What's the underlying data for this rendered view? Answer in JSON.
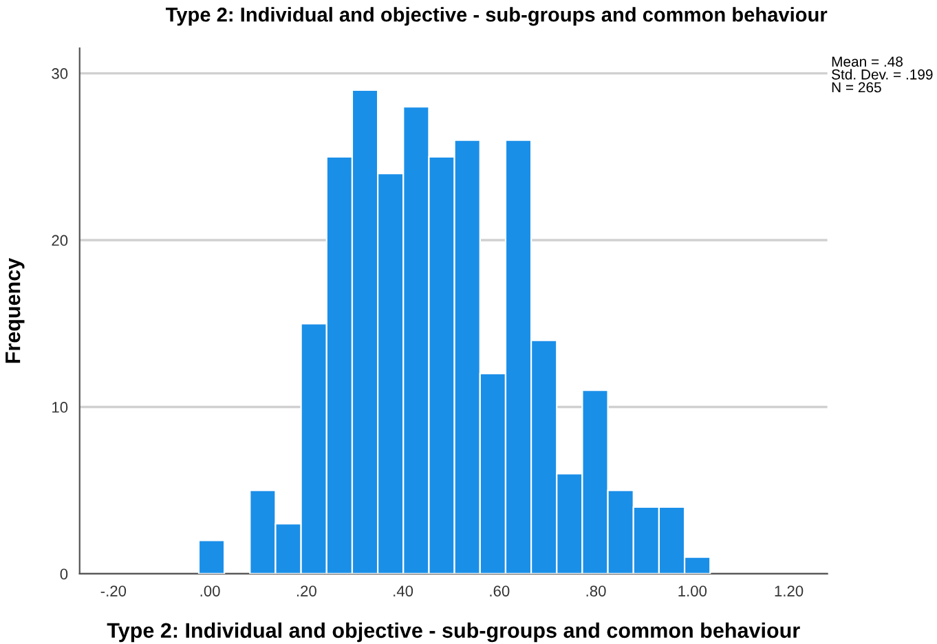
{
  "chart_data": {
    "type": "histogram",
    "title": "Type 2: Individual and objective - sub-groups and common behaviour",
    "xlabel": "Type 2: Individual and objective - sub-groups and common behaviour",
    "ylabel": "Frequency",
    "bins": [
      -0.023,
      0.03,
      0.083,
      0.136,
      0.189,
      0.242,
      0.295,
      0.348,
      0.401,
      0.454,
      0.507,
      0.56,
      0.613,
      0.666,
      0.719,
      0.772,
      0.825,
      0.878,
      0.931,
      0.984,
      1.037
    ],
    "values": [
      2,
      0,
      5,
      3,
      15,
      25,
      29,
      24,
      28,
      25,
      26,
      12,
      26,
      14,
      6,
      11,
      5,
      4,
      4,
      1
    ],
    "color": "#1a8fe8",
    "xlim": [
      -0.27,
      1.28
    ],
    "ylim": [
      0,
      31.5
    ],
    "xticks": [
      {
        "value": -0.2,
        "label": "-.20"
      },
      {
        "value": 0,
        "label": ".00"
      },
      {
        "value": 0.2,
        "label": ".20"
      },
      {
        "value": 0.4,
        "label": ".40"
      },
      {
        "value": 0.6,
        "label": ".60"
      },
      {
        "value": 0.8,
        "label": ".80"
      },
      {
        "value": 1.0,
        "label": "1.00"
      },
      {
        "value": 1.2,
        "label": "1.20"
      }
    ],
    "yticks": [
      0,
      10,
      20,
      30
    ],
    "grid": "y",
    "annotations": [
      "Mean = .48\nStd. Dev. = .199\nN = 265"
    ]
  }
}
